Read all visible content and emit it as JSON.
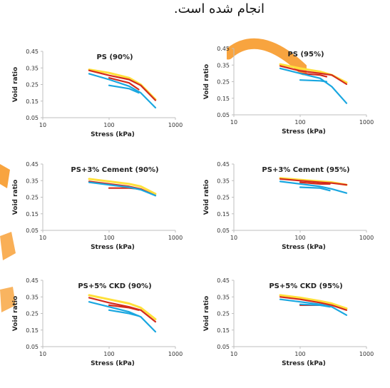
{
  "header": {
    "text": "انجام شده است."
  },
  "colors": {
    "yellow": "#ffe03a",
    "red": "#d42a1c",
    "blue": "#1aa7e0",
    "orange": "#f7941d",
    "axis": "#bfbfbf",
    "tick_text": "#333333"
  },
  "chart_data": [
    {
      "type": "line",
      "title": "PS (90%)",
      "xlabel": "Stress (kPa)",
      "ylabel": "Void ratio",
      "x_scale": "log",
      "xlim": [
        10,
        1000
      ],
      "ylim": [
        0.05,
        0.45
      ],
      "x_ticks": [
        "10",
        "100",
        "1000"
      ],
      "y_ticks": [
        "0.05",
        "0.15",
        "0.25",
        "0.35",
        "0.45"
      ],
      "series": [
        {
          "color": "yellow",
          "x": [
            50,
            100,
            200,
            300,
            500
          ],
          "y": [
            0.34,
            0.32,
            0.29,
            0.25,
            0.16
          ]
        },
        {
          "color": "red",
          "x": [
            50,
            100,
            200,
            300,
            500
          ],
          "y": [
            0.335,
            0.305,
            0.28,
            0.245,
            0.155
          ]
        },
        {
          "color": "red",
          "x": [
            100,
            200,
            280
          ],
          "y": [
            0.29,
            0.26,
            0.22
          ]
        },
        {
          "color": "blue",
          "x": [
            50,
            100,
            200,
            300,
            500
          ],
          "y": [
            0.315,
            0.28,
            0.24,
            0.2,
            0.11
          ]
        },
        {
          "color": "blue",
          "x": [
            100,
            200,
            280
          ],
          "y": [
            0.245,
            0.225,
            0.2
          ]
        }
      ]
    },
    {
      "type": "line",
      "title": "PS (95%)",
      "xlabel": "Stress (kPa)",
      "ylabel": "Void ratio",
      "x_scale": "log",
      "xlim": [
        10,
        1000
      ],
      "ylim": [
        0.05,
        0.45
      ],
      "x_ticks": [
        "10",
        "100",
        "1000"
      ],
      "y_ticks": [
        "0.05",
        "0.15",
        "0.25",
        "0.35",
        "0.45"
      ],
      "series": [
        {
          "color": "yellow",
          "x": [
            50,
            100,
            200,
            300,
            500
          ],
          "y": [
            0.355,
            0.33,
            0.31,
            0.29,
            0.245
          ]
        },
        {
          "color": "red",
          "x": [
            50,
            100,
            200,
            300,
            500
          ],
          "y": [
            0.345,
            0.315,
            0.3,
            0.29,
            0.235
          ]
        },
        {
          "color": "red",
          "x": [
            100,
            200,
            250
          ],
          "y": [
            0.3,
            0.29,
            0.28
          ]
        },
        {
          "color": "blue",
          "x": [
            50,
            100,
            200,
            300,
            500
          ],
          "y": [
            0.33,
            0.3,
            0.27,
            0.22,
            0.12
          ]
        },
        {
          "color": "blue",
          "x": [
            100,
            200,
            250
          ],
          "y": [
            0.26,
            0.255,
            0.25
          ]
        }
      ]
    },
    {
      "type": "line",
      "title": "PS+3% Cement (90%)",
      "xlabel": "Stress (kPa)",
      "ylabel": "Void ratio",
      "x_scale": "log",
      "xlim": [
        10,
        1000
      ],
      "ylim": [
        0.05,
        0.45
      ],
      "x_ticks": [
        "10",
        "100",
        "1000"
      ],
      "y_ticks": [
        "0.05",
        "0.15",
        "0.25",
        "0.35",
        "0.45"
      ],
      "series": [
        {
          "color": "yellow",
          "x": [
            50,
            100,
            200,
            300,
            500
          ],
          "y": [
            0.36,
            0.345,
            0.33,
            0.315,
            0.27
          ]
        },
        {
          "color": "red",
          "x": [
            50,
            100,
            200,
            300,
            500
          ],
          "y": [
            0.345,
            0.33,
            0.315,
            0.3,
            0.26
          ]
        },
        {
          "color": "red",
          "x": [
            100,
            200,
            280
          ],
          "y": [
            0.305,
            0.305,
            0.3
          ]
        },
        {
          "color": "blue",
          "x": [
            50,
            100,
            200,
            300,
            500
          ],
          "y": [
            0.34,
            0.325,
            0.31,
            0.295,
            0.26
          ]
        }
      ]
    },
    {
      "type": "line",
      "title": "PS+3% Cement (95%)",
      "xlabel": "Stress (kPa)",
      "ylabel": "Void ratio",
      "x_scale": "log",
      "xlim": [
        10,
        1000
      ],
      "ylim": [
        0.05,
        0.45
      ],
      "x_ticks": [
        "10",
        "100",
        "1000"
      ],
      "y_ticks": [
        "0.05",
        "0.15",
        "0.25",
        "0.35",
        "0.45"
      ],
      "series": [
        {
          "color": "yellow",
          "x": [
            50,
            100,
            200,
            300,
            500
          ],
          "y": [
            0.365,
            0.355,
            0.345,
            0.34,
            0.325
          ]
        },
        {
          "color": "red",
          "x": [
            50,
            100,
            200,
            300,
            500
          ],
          "y": [
            0.36,
            0.35,
            0.34,
            0.335,
            0.325
          ]
        },
        {
          "color": "red",
          "x": [
            100,
            200,
            280
          ],
          "y": [
            0.34,
            0.33,
            0.33
          ]
        },
        {
          "color": "blue",
          "x": [
            50,
            100,
            200,
            300,
            500
          ],
          "y": [
            0.345,
            0.33,
            0.315,
            0.3,
            0.275
          ]
        },
        {
          "color": "blue",
          "x": [
            100,
            200,
            280
          ],
          "y": [
            0.31,
            0.305,
            0.29
          ]
        }
      ]
    },
    {
      "type": "line",
      "title": "PS+5% CKD (90%)",
      "xlabel": "Stress (kPa)",
      "ylabel": "Void ratio",
      "x_scale": "log",
      "xlim": [
        10,
        1000
      ],
      "ylim": [
        0.05,
        0.45
      ],
      "x_ticks": [
        "10",
        "100",
        "1000"
      ],
      "y_ticks": [
        "0.05",
        "0.15",
        "0.25",
        "0.35",
        "0.45"
      ],
      "series": [
        {
          "color": "yellow",
          "x": [
            50,
            100,
            200,
            300,
            500
          ],
          "y": [
            0.36,
            0.335,
            0.31,
            0.285,
            0.215
          ]
        },
        {
          "color": "red",
          "x": [
            50,
            100,
            200,
            300,
            500
          ],
          "y": [
            0.345,
            0.315,
            0.29,
            0.27,
            0.2
          ]
        },
        {
          "color": "red",
          "x": [
            100,
            200,
            280
          ],
          "y": [
            0.3,
            0.285,
            0.27
          ]
        },
        {
          "color": "blue",
          "x": [
            50,
            100,
            200,
            300,
            500
          ],
          "y": [
            0.32,
            0.29,
            0.26,
            0.23,
            0.14
          ]
        },
        {
          "color": "blue",
          "x": [
            100,
            200,
            280
          ],
          "y": [
            0.27,
            0.25,
            0.235
          ]
        }
      ]
    },
    {
      "type": "line",
      "title": "PS+5% CKD (95%)",
      "xlabel": "Stress (kPa)",
      "ylabel": "Void ratio",
      "x_scale": "log",
      "xlim": [
        10,
        1000
      ],
      "ylim": [
        0.05,
        0.45
      ],
      "x_ticks": [
        "10",
        "100",
        "1000"
      ],
      "y_ticks": [
        "0.05",
        "0.15",
        "0.25",
        "0.35",
        "0.45"
      ],
      "series": [
        {
          "color": "yellow",
          "x": [
            50,
            100,
            200,
            300,
            500
          ],
          "y": [
            0.36,
            0.345,
            0.325,
            0.31,
            0.28
          ]
        },
        {
          "color": "red",
          "x": [
            50,
            100,
            200,
            300,
            500
          ],
          "y": [
            0.35,
            0.335,
            0.315,
            0.3,
            0.27
          ]
        },
        {
          "color": "red",
          "x": [
            100,
            200,
            280
          ],
          "y": [
            0.3,
            0.3,
            0.295
          ]
        },
        {
          "color": "blue",
          "x": [
            50,
            100,
            200,
            300,
            500
          ],
          "y": [
            0.335,
            0.32,
            0.305,
            0.29,
            0.24
          ]
        },
        {
          "color": "blue",
          "x": [
            100,
            200,
            280
          ],
          "y": [
            0.305,
            0.3,
            0.29
          ]
        }
      ]
    }
  ]
}
